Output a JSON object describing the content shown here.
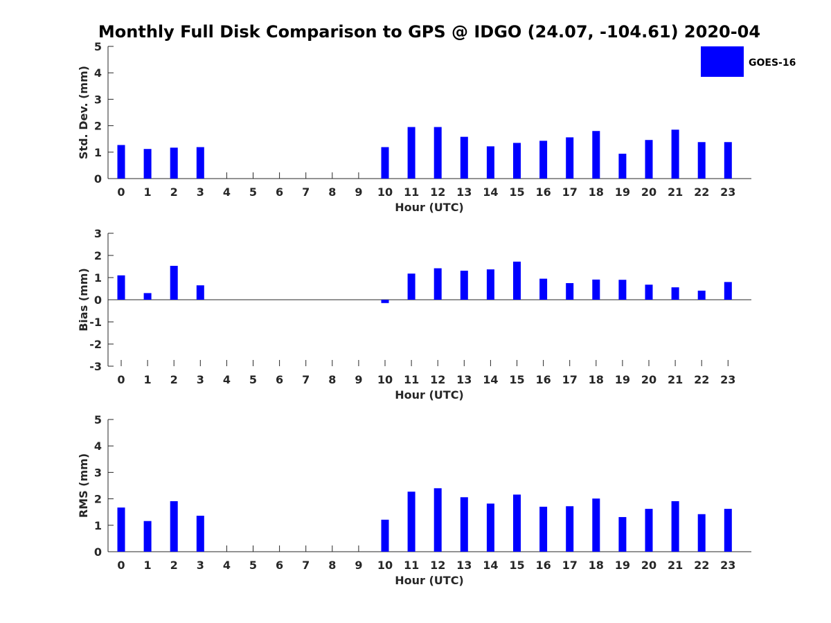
{
  "title": "Monthly Full Disk Comparison to GPS @ IDGO (24.07, -104.61) 2020-04",
  "legend": {
    "label": "GOES-16",
    "color": "#0000ff"
  },
  "chart_data": [
    {
      "type": "bar",
      "name": "std-dev",
      "categories": [
        "0",
        "1",
        "2",
        "3",
        "4",
        "5",
        "6",
        "7",
        "8",
        "9",
        "10",
        "11",
        "12",
        "13",
        "14",
        "15",
        "16",
        "17",
        "18",
        "19",
        "20",
        "21",
        "22",
        "23"
      ],
      "series": [
        {
          "name": "GOES-16",
          "values": [
            1.27,
            1.12,
            1.17,
            1.19,
            null,
            null,
            null,
            null,
            null,
            null,
            1.19,
            1.95,
            1.95,
            1.58,
            1.22,
            1.35,
            1.43,
            1.56,
            1.8,
            0.94,
            1.46,
            1.85,
            1.38,
            1.38
          ]
        }
      ],
      "xlabel": "Hour (UTC)",
      "ylabel": "Std. Dev. (mm)",
      "ylim": [
        0,
        5
      ],
      "yticks": [
        "0",
        "1",
        "2",
        "3",
        "4",
        "5"
      ]
    },
    {
      "type": "bar",
      "name": "bias",
      "categories": [
        "0",
        "1",
        "2",
        "3",
        "4",
        "5",
        "6",
        "7",
        "8",
        "9",
        "10",
        "11",
        "12",
        "13",
        "14",
        "15",
        "16",
        "17",
        "18",
        "19",
        "20",
        "21",
        "22",
        "23"
      ],
      "series": [
        {
          "name": "GOES-16",
          "values": [
            1.1,
            0.3,
            1.53,
            0.65,
            null,
            null,
            null,
            null,
            null,
            null,
            -0.15,
            1.18,
            1.42,
            1.31,
            1.37,
            1.72,
            0.95,
            0.75,
            0.91,
            0.9,
            0.68,
            0.56,
            0.41,
            0.8
          ]
        }
      ],
      "xlabel": "Hour (UTC)",
      "ylabel": "Bias (mm)",
      "ylim": [
        -3,
        3
      ],
      "yticks": [
        "-3",
        "-2",
        "-1",
        "0",
        "1",
        "2",
        "3"
      ]
    },
    {
      "type": "bar",
      "name": "rms",
      "categories": [
        "0",
        "1",
        "2",
        "3",
        "4",
        "5",
        "6",
        "7",
        "8",
        "9",
        "10",
        "11",
        "12",
        "13",
        "14",
        "15",
        "16",
        "17",
        "18",
        "19",
        "20",
        "21",
        "22",
        "23"
      ],
      "series": [
        {
          "name": "GOES-16",
          "values": [
            1.67,
            1.16,
            1.91,
            1.36,
            null,
            null,
            null,
            null,
            null,
            null,
            1.21,
            2.27,
            2.4,
            2.06,
            1.82,
            2.16,
            1.7,
            1.72,
            2.01,
            1.31,
            1.62,
            1.91,
            1.42,
            1.62
          ]
        }
      ],
      "xlabel": "Hour (UTC)",
      "ylabel": "RMS (mm)",
      "ylim": [
        0,
        5
      ],
      "yticks": [
        "0",
        "1",
        "2",
        "3",
        "4",
        "5"
      ]
    }
  ]
}
